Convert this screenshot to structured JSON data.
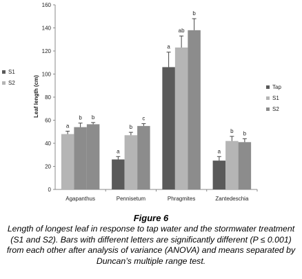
{
  "figure": {
    "title": "Figure 6",
    "caption": "Length of longest leaf in response to tap water and the stormwater treatment (S1 and S2). Bars with different letters are significantly different (P ≤ 0.001) from each other after analysis of variance (ANOVA) and means separated by Duncan’s multiple range test."
  },
  "chart_data": {
    "type": "bar",
    "ylabel": "Leaf length (cm)",
    "xlabel": "",
    "ylim": [
      0,
      160
    ],
    "yticks": [
      0,
      20,
      40,
      60,
      80,
      100,
      120,
      140,
      160
    ],
    "grid": false,
    "categories": [
      "Agapanthus",
      "Pennisetum",
      "Phragmites",
      "Zantedeschia"
    ],
    "series": [
      {
        "name": "Tap",
        "color": "#5a5a5a",
        "values": [
          null,
          26,
          106,
          25
        ],
        "errors": [
          null,
          2.5,
          13,
          3.5
        ],
        "letters": [
          "",
          "a",
          "a",
          "a"
        ]
      },
      {
        "name": "S1",
        "color": "#b5b5b5",
        "values": [
          48,
          47,
          123,
          42
        ],
        "errors": [
          2.5,
          2.5,
          10,
          4
        ],
        "letters": [
          "a",
          "b",
          "ab",
          "b"
        ]
      },
      {
        "name": "S2",
        "color": "#8c8c8c",
        "values": [
          54,
          55,
          138,
          41
        ],
        "errors": [
          3.5,
          2,
          10,
          3
        ],
        "letters": [
          "b",
          "c",
          "b",
          "b"
        ]
      },
      {
        "name": "",
        "color": "#8c8c8c",
        "values": [
          56.5,
          null,
          null,
          null
        ],
        "errors": [
          1.5,
          null,
          null,
          null
        ],
        "letters": [
          "b",
          "",
          "",
          ""
        ]
      }
    ],
    "legends": [
      {
        "placement": "left",
        "entries": [
          {
            "label": "S1",
            "color": "#5a5a5a"
          },
          {
            "label": "S2",
            "color": "#b5b5b5"
          }
        ]
      },
      {
        "placement": "right",
        "entries": [
          {
            "label": "Tap",
            "color": "#5a5a5a"
          },
          {
            "label": "S1",
            "color": "#b5b5b5"
          },
          {
            "label": "S2",
            "color": "#8c8c8c"
          }
        ]
      }
    ]
  }
}
